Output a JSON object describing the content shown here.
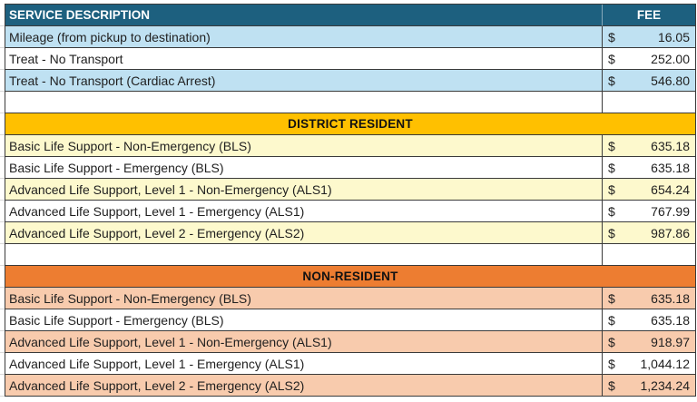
{
  "colors": {
    "header_bg": "#1D607F",
    "border": "#3A3A3A",
    "blue_row": "#BFE1F2",
    "gold_section": "#FFC000",
    "yellow_row": "#FDF9CD",
    "orange_section": "#ED7D31",
    "peach_row": "#F8CBAD"
  },
  "header": {
    "service_label": "SERVICE DESCRIPTION",
    "fee_label": "FEE"
  },
  "rows": [
    {
      "type": "data",
      "shade": "blue",
      "desc": "Mileage (from pickup to destination)",
      "currency": "$",
      "amount": "16.05"
    },
    {
      "type": "data",
      "shade": "white",
      "desc": "Treat - No Transport",
      "currency": "$",
      "amount": "252.00"
    },
    {
      "type": "data",
      "shade": "blue",
      "desc": "Treat - No Transport (Cardiac Arrest)",
      "currency": "$",
      "amount": "546.80"
    },
    {
      "type": "spacer",
      "shade": "white"
    },
    {
      "type": "section",
      "shade": "gold",
      "label": "DISTRICT RESIDENT"
    },
    {
      "type": "data",
      "shade": "yellow",
      "desc": "Basic Life Support - Non-Emergency (BLS)",
      "currency": "$",
      "amount": "635.18"
    },
    {
      "type": "data",
      "shade": "white",
      "desc": "Basic Life Support - Emergency (BLS)",
      "currency": "$",
      "amount": "635.18"
    },
    {
      "type": "data",
      "shade": "yellow",
      "desc": "Advanced Life Support, Level 1 - Non-Emergency (ALS1)",
      "currency": "$",
      "amount": "654.24"
    },
    {
      "type": "data",
      "shade": "white",
      "desc": "Advanced Life Support, Level 1 - Emergency (ALS1)",
      "currency": "$",
      "amount": "767.99"
    },
    {
      "type": "data",
      "shade": "yellow",
      "desc": "Advanced Life Support, Level 2 - Emergency (ALS2)",
      "currency": "$",
      "amount": "987.86"
    },
    {
      "type": "spacer",
      "shade": "white"
    },
    {
      "type": "section",
      "shade": "orange",
      "label": "NON-RESIDENT"
    },
    {
      "type": "data",
      "shade": "peach",
      "desc": "Basic Life Support - Non-Emergency (BLS)",
      "currency": "$",
      "amount": "635.18"
    },
    {
      "type": "data",
      "shade": "white",
      "desc": "Basic Life Support - Emergency (BLS)",
      "currency": "$",
      "amount": "635.18"
    },
    {
      "type": "data",
      "shade": "peach",
      "desc": "Advanced Life Support, Level 1 - Non-Emergency (ALS1)",
      "currency": "$",
      "amount": "918.97"
    },
    {
      "type": "data",
      "shade": "white",
      "desc": "Advanced Life Support, Level 1 - Emergency (ALS1)",
      "currency": "$",
      "amount": "1,044.12"
    },
    {
      "type": "data",
      "shade": "peach",
      "desc": "Advanced Life Support, Level 2 - Emergency (ALS2)",
      "currency": "$",
      "amount": "1,234.24"
    }
  ]
}
